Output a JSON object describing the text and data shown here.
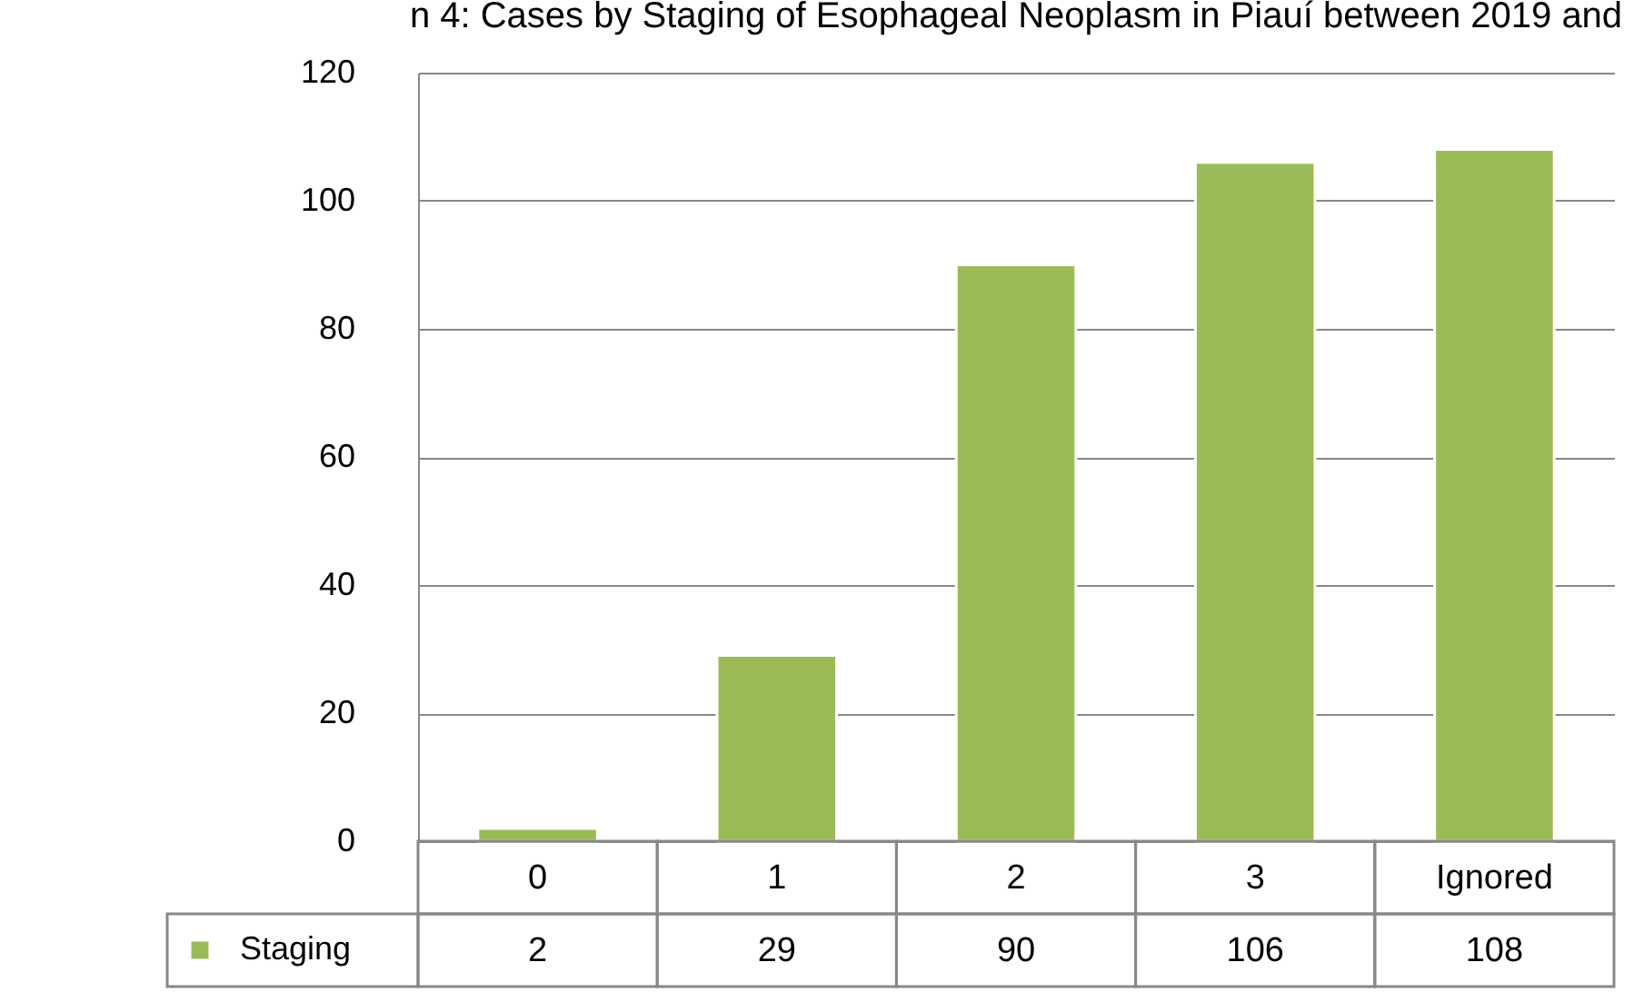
{
  "chart_data": {
    "type": "bar",
    "title": "n 4: Cases by Staging of Esophageal Neoplasm in Piauí between 2019 and",
    "categories": [
      "0",
      "1",
      "2",
      "3",
      "Ignored"
    ],
    "series": [
      {
        "name": "Staging",
        "color": "#9bbb59",
        "values": [
          2,
          29,
          90,
          106,
          108
        ]
      }
    ],
    "ylim": [
      0,
      120
    ],
    "yticks": [
      0,
      20,
      40,
      60,
      80,
      100,
      120
    ],
    "grid": "y",
    "data_labels": true,
    "legend": "bottom"
  }
}
